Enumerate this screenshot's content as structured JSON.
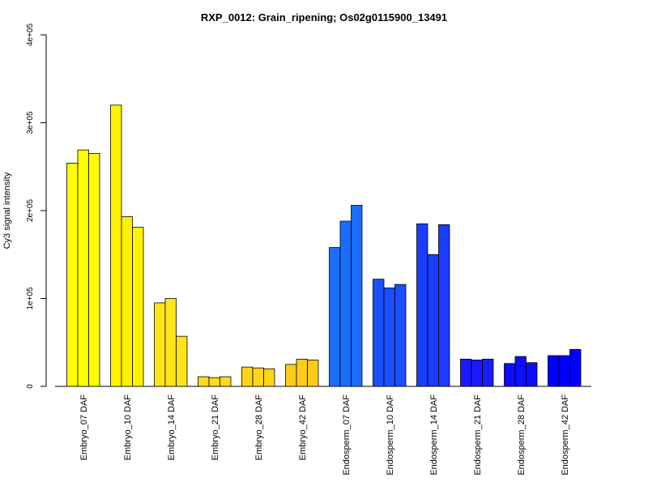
{
  "chart_data": {
    "type": "bar",
    "title": "RXP_0012: Grain_ripening; Os02g0115900_13491",
    "xlabel": "",
    "ylabel": "Cy3 signal intensity",
    "ylim": [
      0,
      400000
    ],
    "yticks": [
      0,
      100000,
      200000,
      300000,
      400000
    ],
    "ytick_labels": [
      "0",
      "1e+05",
      "2e+05",
      "3e+05",
      "4e+05"
    ],
    "grid": false,
    "legend": "none",
    "categories": [
      "Embryo_07 DAF",
      "Embryo_10 DAF",
      "Embryo_14 DAF",
      "Embryo_21 DAF",
      "Embryo_28 DAF",
      "Embryo_42 DAF",
      "Endosperm_07 DAF",
      "Endosperm_10 DAF",
      "Endosperm_14 DAF",
      "Endosperm_21 DAF",
      "Endosperm_28 DAF",
      "Endosperm_42 DAF"
    ],
    "colors": [
      "#FFFF00",
      "#FFF200",
      "#FFE41C",
      "#FFD91A",
      "#FFD51A",
      "#FFCB1A",
      "#1A6EFF",
      "#1A4EFF",
      "#1A3DFF",
      "#1A1AFF",
      "#0D0DFF",
      "#0000FF"
    ],
    "replicates": [
      [
        254000,
        269000,
        265000
      ],
      [
        320000,
        193000,
        181000
      ],
      [
        95000,
        100000,
        57000
      ],
      [
        11000,
        10000,
        11000
      ],
      [
        22000,
        21000,
        20000
      ],
      [
        25000,
        31000,
        30000
      ],
      [
        158000,
        188000,
        206000
      ],
      [
        122000,
        112000,
        116000
      ],
      [
        185000,
        150000,
        184000
      ],
      [
        31000,
        30000,
        31000
      ],
      [
        26000,
        34000,
        27000
      ],
      [
        35000,
        35000,
        42000
      ]
    ]
  }
}
